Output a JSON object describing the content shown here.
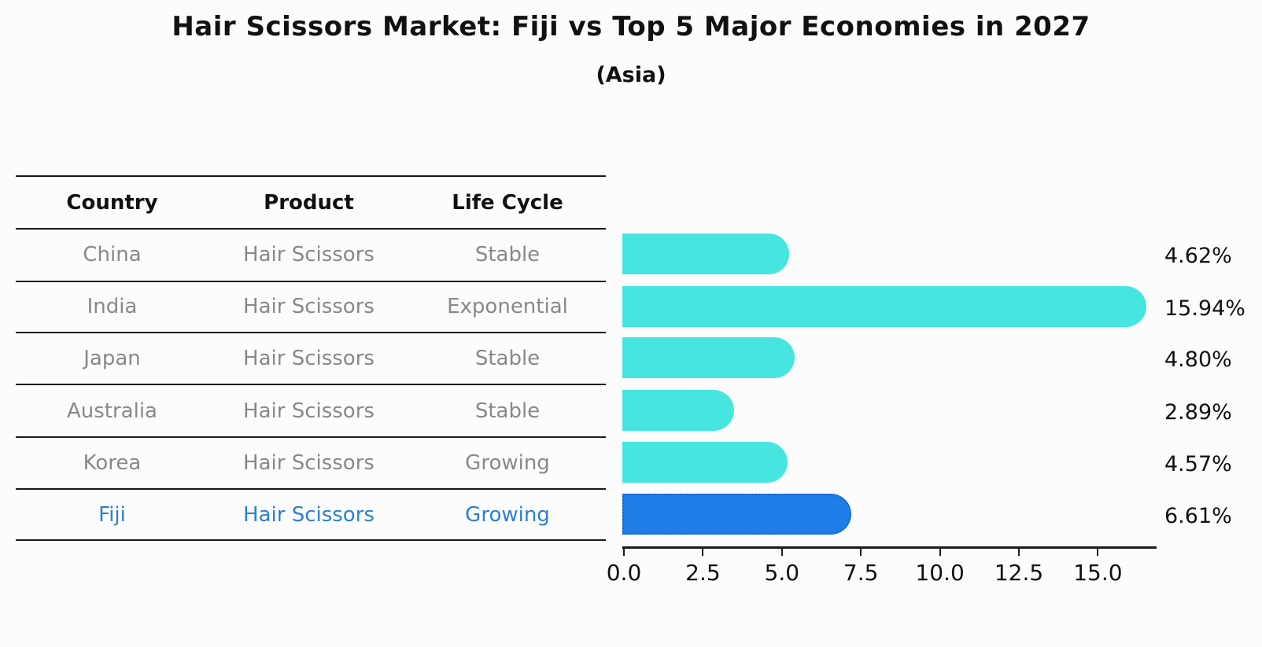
{
  "chart_data": {
    "type": "bar",
    "orientation": "horizontal",
    "title": "Hair Scissors Market: Fiji vs Top 5 Major Economies in 2027",
    "subtitle": "(Asia)",
    "categories": [
      "China",
      "India",
      "Japan",
      "Australia",
      "Korea",
      "Fiji"
    ],
    "values": [
      4.62,
      15.94,
      4.8,
      2.89,
      4.57,
      6.61
    ],
    "value_labels": [
      "4.62%",
      "15.94%",
      "4.80%",
      "2.89%",
      "4.57%",
      "6.61%"
    ],
    "highlight_category": "Fiji",
    "xlim": [
      0,
      16.9
    ],
    "xticks": [
      0,
      2.5,
      5,
      7.5,
      10,
      12.5,
      15
    ],
    "xtick_labels": [
      "0.0",
      "2.5",
      "5.0",
      "7.5",
      "10.0",
      "12.5",
      "15.0"
    ],
    "grid": false,
    "legend": null,
    "colors": {
      "bar": "#46e5e0",
      "highlight_bar": "#1f7de8",
      "highlight_border": "#1362cd",
      "label_text": "#111111",
      "row_text": "#888888",
      "highlight_text": "#2e7fd0",
      "axis": "#1a1a1a"
    }
  },
  "table": {
    "headers": [
      "Country",
      "Product",
      "Life Cycle"
    ],
    "rows": [
      {
        "country": "China",
        "product": "Hair Scissors",
        "life_cycle": "Stable",
        "highlight": false
      },
      {
        "country": "India",
        "product": "Hair Scissors",
        "life_cycle": "Exponential",
        "highlight": false
      },
      {
        "country": "Japan",
        "product": "Hair Scissors",
        "life_cycle": "Stable",
        "highlight": false
      },
      {
        "country": "Australia",
        "product": "Hair Scissors",
        "life_cycle": "Stable",
        "highlight": false
      },
      {
        "country": "Korea",
        "product": "Hair Scissors",
        "life_cycle": "Growing",
        "highlight": false
      },
      {
        "country": "Fiji",
        "product": "Hair Scissors",
        "life_cycle": "Growing",
        "highlight": true
      }
    ]
  }
}
